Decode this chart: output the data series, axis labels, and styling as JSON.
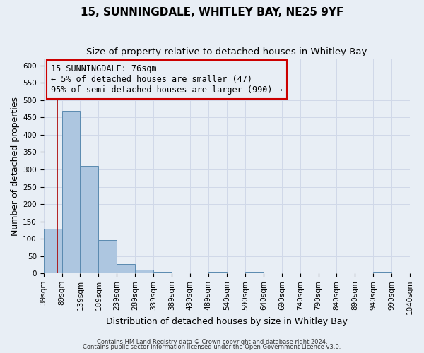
{
  "title": "15, SUNNINGDALE, WHITLEY BAY, NE25 9YF",
  "subtitle": "Size of property relative to detached houses in Whitley Bay",
  "xlabel": "Distribution of detached houses by size in Whitley Bay",
  "ylabel": "Number of detached properties",
  "footer_line1": "Contains HM Land Registry data © Crown copyright and database right 2024.",
  "footer_line2": "Contains public sector information licensed under the Open Government Licence v3.0.",
  "bar_edges": [
    39,
    89,
    139,
    189,
    239,
    289,
    339,
    389,
    439,
    489,
    540,
    590,
    640,
    690,
    740,
    790,
    840,
    890,
    940,
    990,
    1040
  ],
  "bar_labels": [
    "39sqm",
    "89sqm",
    "139sqm",
    "189sqm",
    "239sqm",
    "289sqm",
    "339sqm",
    "389sqm",
    "439sqm",
    "489sqm",
    "540sqm",
    "590sqm",
    "640sqm",
    "690sqm",
    "740sqm",
    "790sqm",
    "840sqm",
    "890sqm",
    "940sqm",
    "990sqm",
    "1040sqm"
  ],
  "bar_heights": [
    128,
    470,
    311,
    96,
    26,
    10,
    5,
    0,
    0,
    5,
    0,
    5,
    0,
    0,
    0,
    0,
    0,
    0,
    5,
    0,
    0
  ],
  "bar_color": "#adc6e0",
  "bar_edge_color": "#5a8ab0",
  "property_size": 76,
  "property_line_color": "#aa0000",
  "annotation_title": "15 SUNNINGDALE: 76sqm",
  "annotation_line2": "← 5% of detached houses are smaller (47)",
  "annotation_line3": "95% of semi-detached houses are larger (990) →",
  "annotation_box_edgecolor": "#cc0000",
  "ylim": [
    0,
    620
  ],
  "yticks": [
    0,
    50,
    100,
    150,
    200,
    250,
    300,
    350,
    400,
    450,
    500,
    550,
    600
  ],
  "xlim_left": 39,
  "xlim_right": 1040,
  "background_color": "#e8eef5",
  "grid_color": "#d0d8e8",
  "title_fontsize": 11,
  "subtitle_fontsize": 9.5,
  "axis_label_fontsize": 9,
  "tick_fontsize": 7.5,
  "annotation_fontsize": 8.5
}
